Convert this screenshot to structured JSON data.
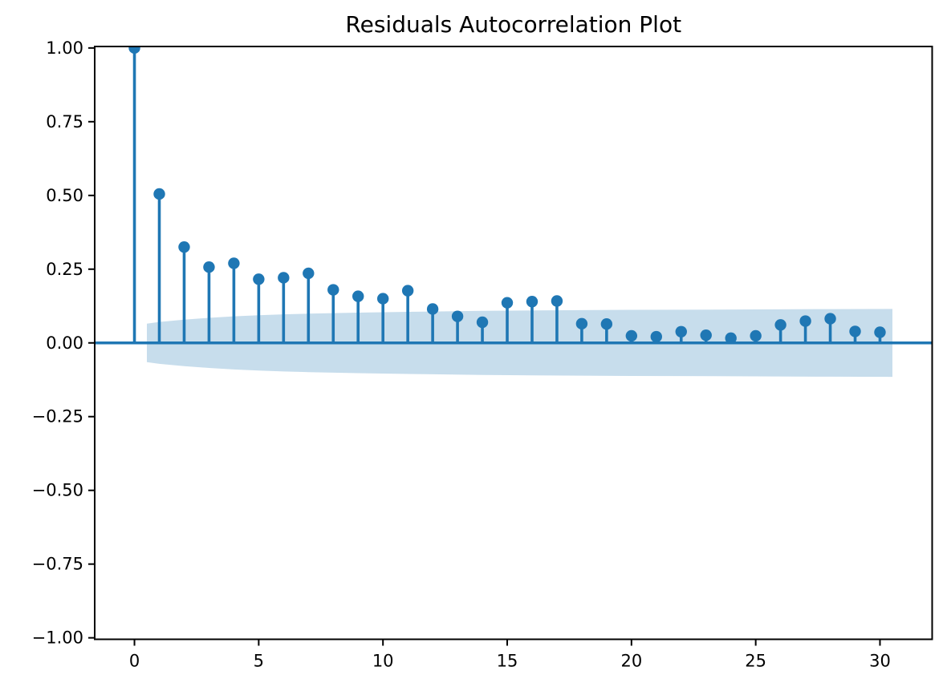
{
  "title": "Residuals Autocorrelation Plot",
  "colors": {
    "accent": "#1f77b4",
    "confidence_band_fill": "rgba(31,119,180,0.25)",
    "axis": "#000000",
    "background": "#ffffff"
  },
  "chart_data": {
    "type": "stem",
    "title": "Residuals Autocorrelation Plot",
    "xlabel": "",
    "ylabel": "",
    "x": [
      0,
      1,
      2,
      3,
      4,
      5,
      6,
      7,
      8,
      9,
      10,
      11,
      12,
      13,
      14,
      15,
      16,
      17,
      18,
      19,
      20,
      21,
      22,
      23,
      24,
      25,
      26,
      27,
      28,
      29,
      30
    ],
    "values": [
      1.0,
      0.505,
      0.325,
      0.257,
      0.27,
      0.216,
      0.221,
      0.236,
      0.18,
      0.158,
      0.15,
      0.177,
      0.115,
      0.09,
      0.07,
      0.136,
      0.14,
      0.142,
      0.065,
      0.064,
      0.024,
      0.021,
      0.038,
      0.026,
      0.016,
      0.024,
      0.061,
      0.074,
      0.082,
      0.039,
      0.036
    ],
    "confidence_band": {
      "lags": [
        0.5,
        1,
        2,
        3,
        4,
        5,
        6,
        7,
        8,
        9,
        10,
        12,
        14,
        16,
        18,
        20,
        22,
        25,
        28,
        30.5
      ],
      "half_widths": [
        0.065,
        0.071,
        0.079,
        0.085,
        0.09,
        0.094,
        0.097,
        0.099,
        0.101,
        0.1025,
        0.104,
        0.1065,
        0.1085,
        0.11,
        0.111,
        0.112,
        0.1125,
        0.1135,
        0.1145,
        0.115
      ]
    },
    "xlim": [
      -1.6,
      32.1
    ],
    "ylim": [
      -1.005,
      1.005
    ],
    "xticks": [
      0,
      5,
      10,
      15,
      20,
      25,
      30
    ],
    "xtick_labels": [
      "0",
      "5",
      "10",
      "15",
      "20",
      "25",
      "30"
    ],
    "yticks": [
      1.0,
      0.75,
      0.5,
      0.25,
      0.0,
      -0.25,
      -0.5,
      -0.75,
      -1.0
    ],
    "ytick_labels": [
      "1.00",
      "0.75",
      "0.50",
      "0.25",
      "0.00",
      "−0.25",
      "−0.50",
      "−0.75",
      "−1.00"
    ],
    "grid": false,
    "legend": null
  }
}
